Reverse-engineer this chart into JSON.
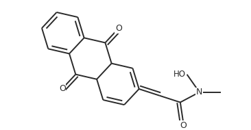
{
  "bg_color": "#ffffff",
  "line_color": "#2a2a2a",
  "line_width": 1.4,
  "figsize": [
    3.66,
    1.9
  ],
  "dpi": 100,
  "xlim": [
    0,
    3.66
  ],
  "ylim": [
    0,
    1.9
  ]
}
